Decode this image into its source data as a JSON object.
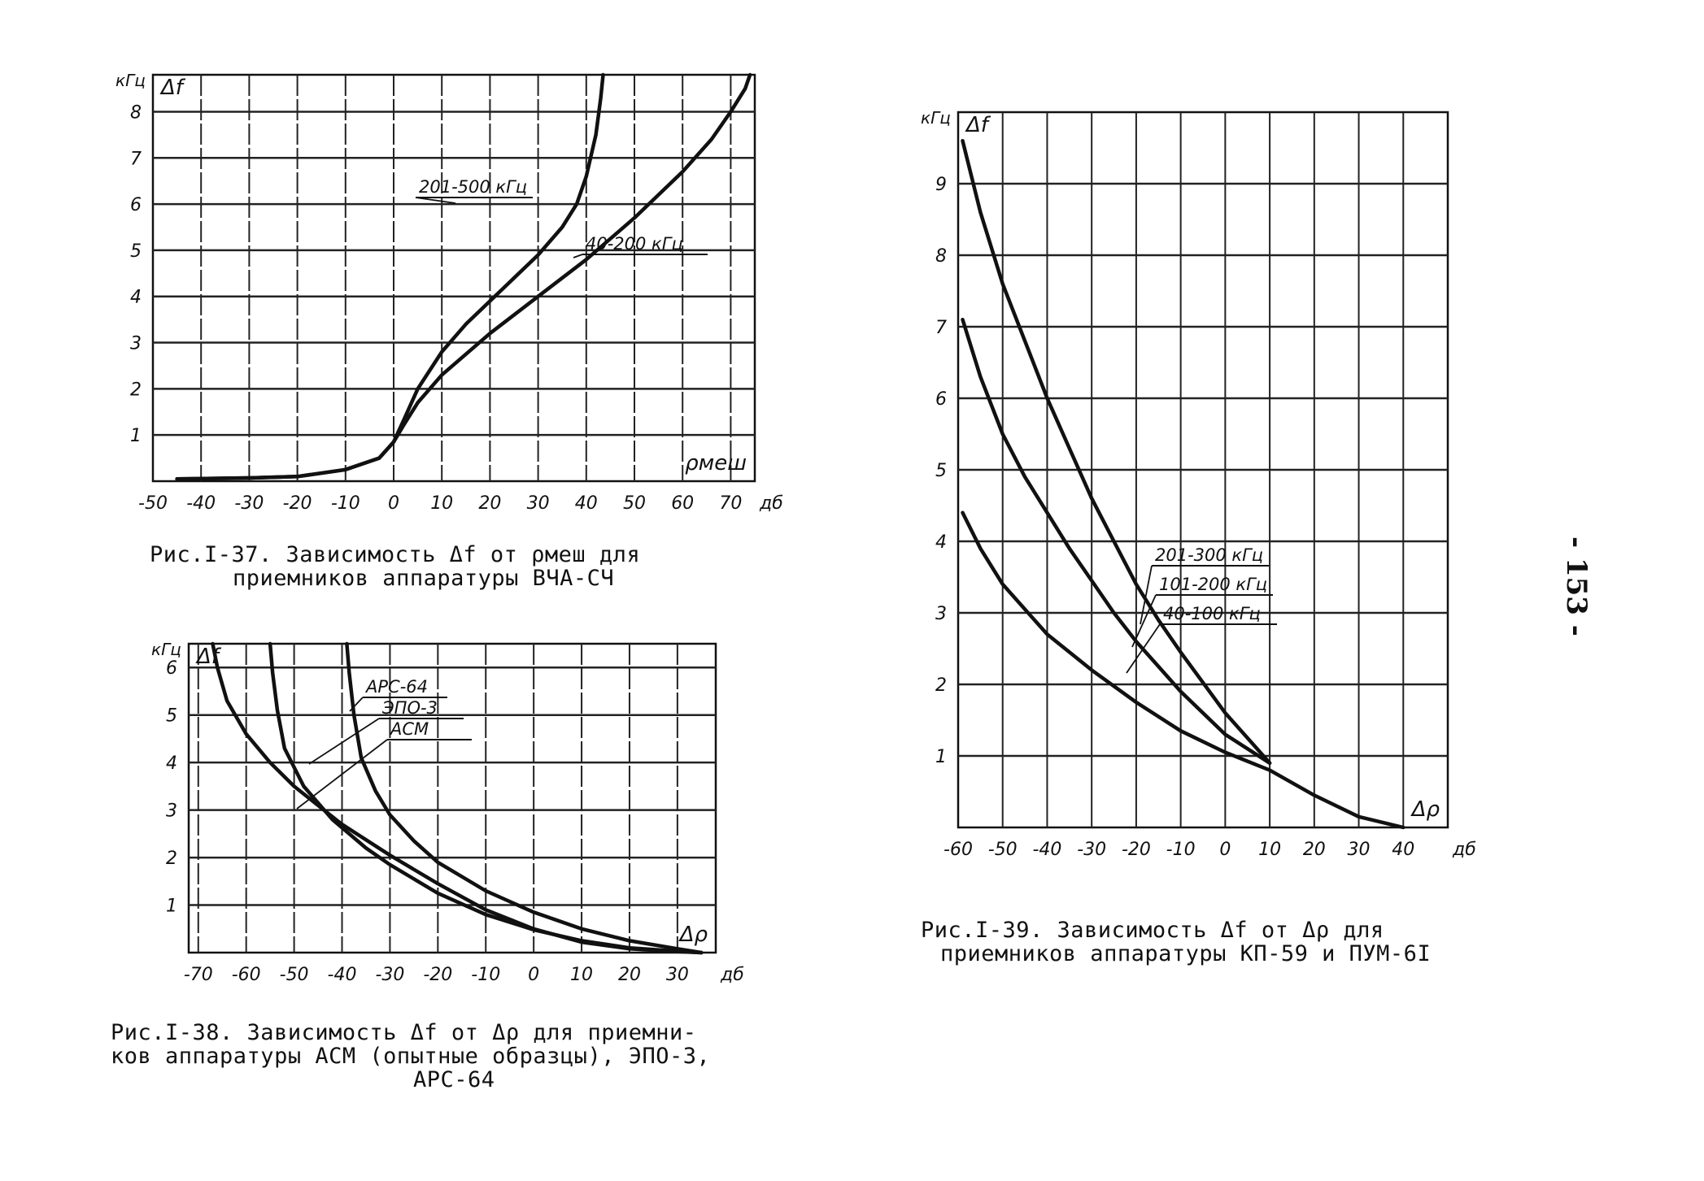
{
  "page_number": "- 153 -",
  "chart_data": [
    {
      "id": "fig37",
      "type": "line",
      "caption_lines": [
        "Рис.I-37. Зависимость Δf  от ρмеш для",
        "приемников аппаратуры ВЧА-СЧ"
      ],
      "y_unit": "кГц",
      "ylabel": "Δf",
      "xlabel": "ρмеш",
      "x_unit": "дб",
      "xlim": [
        -50,
        75
      ],
      "ylim": [
        0,
        8.8
      ],
      "x_ticks": [
        -50,
        -40,
        -30,
        -20,
        -10,
        0,
        10,
        20,
        30,
        40,
        50,
        60,
        70
      ],
      "y_ticks": [
        1,
        2,
        3,
        4,
        5,
        6,
        7,
        8
      ],
      "x_tick_labels": [
        "-50",
        "-40",
        "-30",
        "-20",
        "-10",
        "0",
        "10",
        "20",
        "30",
        "40",
        "50",
        "60",
        "70"
      ],
      "y_tick_labels": [
        "1",
        "2",
        "3",
        "4",
        "5",
        "6",
        "7",
        "8"
      ],
      "series": [
        {
          "name": "201-500 кГц",
          "x": [
            -45,
            -30,
            -20,
            -10,
            -3,
            0,
            2,
            5,
            10,
            15,
            20,
            25,
            30,
            35,
            38,
            40,
            42,
            43,
            43.5
          ],
          "y": [
            0.05,
            0.07,
            0.1,
            0.25,
            0.5,
            0.85,
            1.3,
            2.0,
            2.8,
            3.4,
            3.9,
            4.4,
            4.9,
            5.5,
            6.0,
            6.6,
            7.5,
            8.3,
            8.8
          ]
        },
        {
          "name": "40-200 кГц",
          "x": [
            -45,
            -30,
            -20,
            -10,
            -3,
            0,
            2,
            5,
            10,
            20,
            30,
            40,
            50,
            60,
            66,
            70,
            73,
            74
          ],
          "y": [
            0.05,
            0.07,
            0.1,
            0.25,
            0.5,
            0.85,
            1.2,
            1.7,
            2.3,
            3.2,
            4.0,
            4.8,
            5.7,
            6.7,
            7.4,
            8.0,
            8.5,
            8.8
          ]
        }
      ]
    },
    {
      "id": "fig38",
      "type": "line",
      "caption_lines": [
        "Рис.I-38. Зависимость Δf  от Δρ  для приемни-",
        "ков аппаратуры АСМ (опытные образцы), ЭПО-3,",
        "АРС-64"
      ],
      "y_unit": "кГц",
      "ylabel": "Δf",
      "xlabel": "Δρ",
      "x_unit": "дб",
      "xlim": [
        -72,
        38
      ],
      "ylim": [
        0,
        6.5
      ],
      "x_ticks": [
        -70,
        -60,
        -50,
        -40,
        -30,
        -20,
        -10,
        0,
        10,
        20,
        30
      ],
      "y_ticks": [
        1,
        2,
        3,
        4,
        5,
        6
      ],
      "x_tick_labels": [
        "-70",
        "-60",
        "-50",
        "-40",
        "-30",
        "-20",
        "-10",
        "0",
        "10",
        "20",
        "30"
      ],
      "y_tick_labels": [
        "1",
        "2",
        "3",
        "4",
        "5",
        "6"
      ],
      "series": [
        {
          "name": "АРС-64",
          "x": [
            -39,
            -38.5,
            -37.5,
            -36,
            -33,
            -30,
            -25,
            -20,
            -10,
            0,
            10,
            20,
            30,
            35
          ],
          "y": [
            6.5,
            5.9,
            5.0,
            4.1,
            3.4,
            2.9,
            2.35,
            1.9,
            1.3,
            0.85,
            0.5,
            0.25,
            0.08,
            0
          ]
        },
        {
          "name": "ЭПО-3",
          "x": [
            -55,
            -54.5,
            -53.5,
            -52,
            -48,
            -42,
            -35,
            -30,
            -20,
            -10,
            0,
            10,
            20,
            30,
            35
          ],
          "y": [
            6.5,
            5.9,
            5.1,
            4.3,
            3.5,
            2.8,
            2.2,
            1.85,
            1.25,
            0.8,
            0.48,
            0.25,
            0.1,
            0.03,
            0
          ]
        },
        {
          "name": "АСМ",
          "x": [
            -67,
            -66,
            -64,
            -60,
            -55,
            -50,
            -40,
            -30,
            -20,
            -10,
            0,
            10,
            20,
            30,
            35
          ],
          "y": [
            6.5,
            6.0,
            5.3,
            4.6,
            4.0,
            3.5,
            2.7,
            2.05,
            1.45,
            0.9,
            0.5,
            0.22,
            0.08,
            0.02,
            0
          ]
        }
      ]
    },
    {
      "id": "fig39",
      "type": "line",
      "caption_lines": [
        "Рис.I-39. Зависимость Δf  от Δρ  для",
        "приемников аппаратуры КП-59 и ПУМ-6I"
      ],
      "y_unit": "кГц",
      "ylabel": "Δf",
      "xlabel": "Δρ",
      "x_unit": "дб",
      "xlim": [
        -60,
        50
      ],
      "ylim": [
        0,
        10
      ],
      "x_ticks": [
        -60,
        -50,
        -40,
        -30,
        -20,
        -10,
        0,
        10,
        20,
        30,
        40
      ],
      "y_ticks": [
        1,
        2,
        3,
        4,
        5,
        6,
        7,
        8,
        9
      ],
      "x_tick_labels": [
        "-60",
        "-50",
        "-40",
        "-30",
        "-20",
        "-10",
        "0",
        "10",
        "20",
        "30",
        "40"
      ],
      "y_tick_labels": [
        "1",
        "2",
        "3",
        "4",
        "5",
        "6",
        "7",
        "8",
        "9"
      ],
      "series": [
        {
          "name": "201-300 кГц",
          "x": [
            -59,
            -55,
            -50,
            -45,
            -40,
            -35,
            -30,
            -25,
            -20,
            -15,
            -10,
            0,
            10
          ],
          "y": [
            9.6,
            8.6,
            7.6,
            6.8,
            6.0,
            5.3,
            4.6,
            4.0,
            3.4,
            2.9,
            2.45,
            1.6,
            0.9
          ]
        },
        {
          "name": "101-200 кГц",
          "x": [
            -59,
            -55,
            -50,
            -45,
            -40,
            -35,
            -30,
            -25,
            -20,
            -15,
            -10,
            0,
            10
          ],
          "y": [
            7.1,
            6.3,
            5.5,
            4.9,
            4.4,
            3.9,
            3.45,
            3.0,
            2.6,
            2.25,
            1.9,
            1.3,
            0.9
          ]
        },
        {
          "name": "40-100 кГц",
          "x": [
            -59,
            -55,
            -50,
            -40,
            -30,
            -20,
            -10,
            0,
            10,
            20,
            30,
            40
          ],
          "y": [
            4.4,
            3.9,
            3.4,
            2.7,
            2.2,
            1.75,
            1.35,
            1.05,
            0.8,
            0.45,
            0.15,
            0
          ]
        }
      ]
    }
  ]
}
